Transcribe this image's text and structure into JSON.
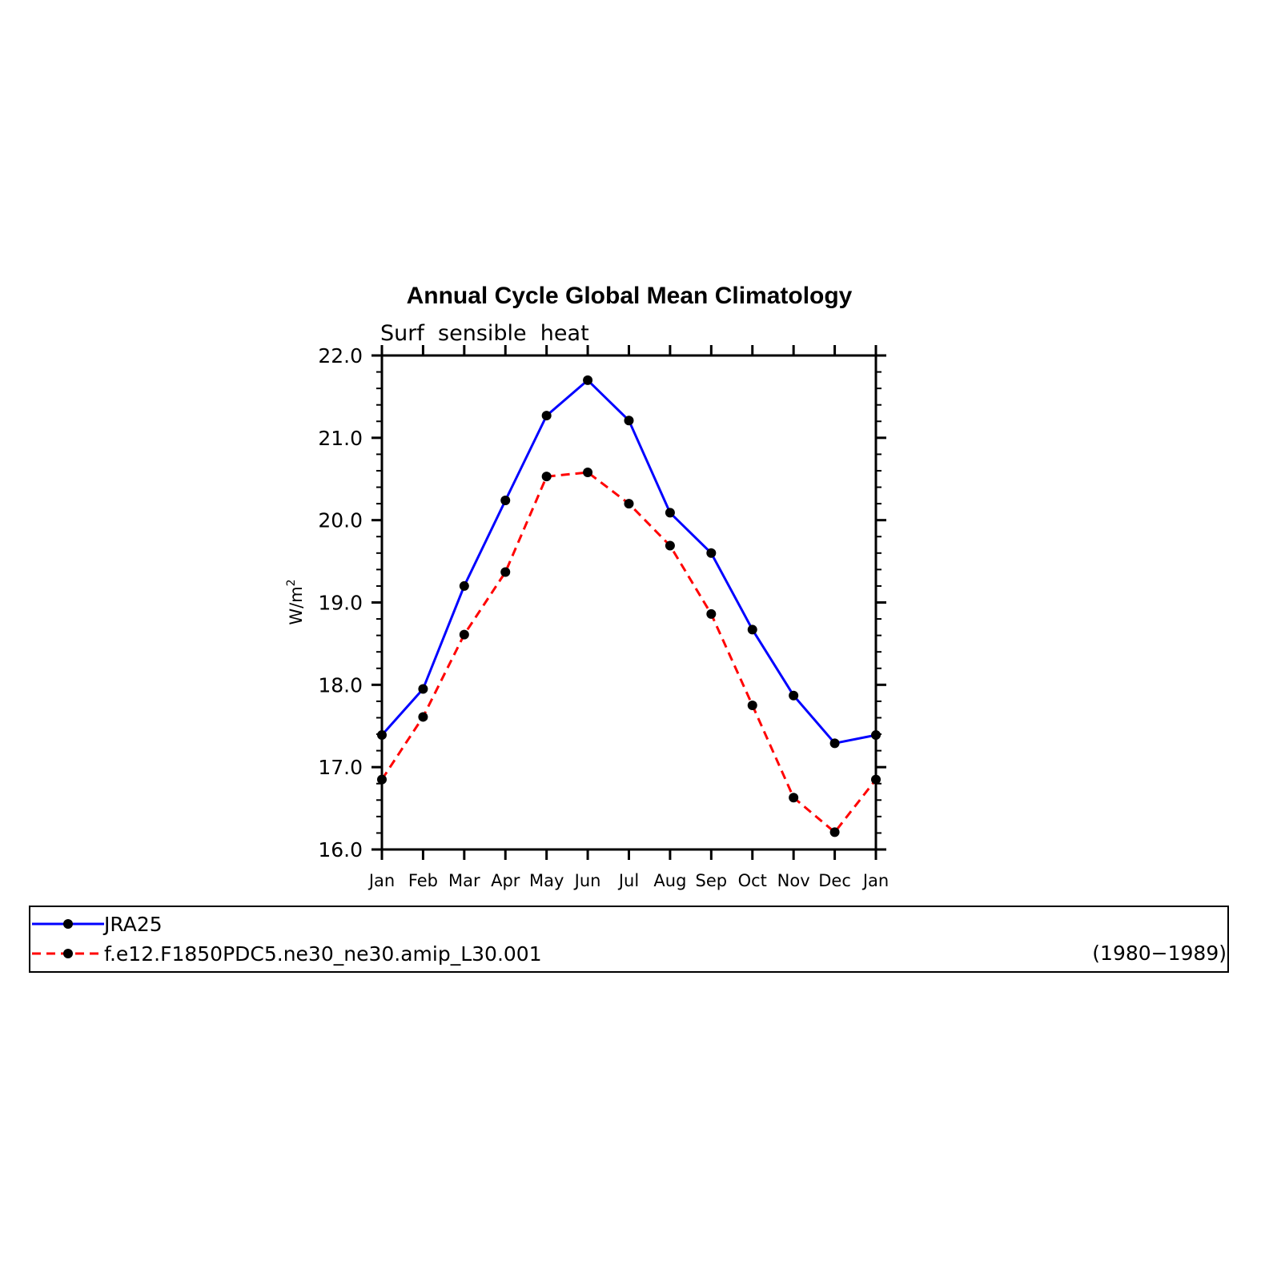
{
  "chart_data": {
    "type": "line",
    "title": "Annual Cycle Global Mean Climatology",
    "subtitle": "Surf  sensible  heat",
    "ylabel": "W/m",
    "ylabel_superscript": "2",
    "xlabel": "",
    "ylim": [
      16.0,
      22.0
    ],
    "y_ticks": [
      "16.0",
      "17.0",
      "18.0",
      "19.0",
      "20.0",
      "21.0",
      "22.0"
    ],
    "categories": [
      "Jan",
      "Feb",
      "Mar",
      "Apr",
      "May",
      "Jun",
      "Jul",
      "Aug",
      "Sep",
      "Oct",
      "Nov",
      "Dec",
      "Jan"
    ],
    "grid": false,
    "legend_placement": "bottom",
    "series": [
      {
        "name": "JRA25",
        "color": "#0000ff",
        "line_style": "solid",
        "marker": "filled-circle",
        "values": [
          17.39,
          17.95,
          19.2,
          20.24,
          21.27,
          21.7,
          21.21,
          20.09,
          19.6,
          18.67,
          17.87,
          17.29,
          17.39
        ]
      },
      {
        "name": "f.e12.F1850PDC5.ne30_ne30.amip_L30.001",
        "color": "#ff0000",
        "line_style": "dashed",
        "marker": "filled-circle",
        "values": [
          16.85,
          17.61,
          18.61,
          19.37,
          20.53,
          20.58,
          20.2,
          19.69,
          18.86,
          17.75,
          16.63,
          16.21,
          16.85
        ]
      }
    ],
    "legend_note": "(1980−1989)"
  }
}
